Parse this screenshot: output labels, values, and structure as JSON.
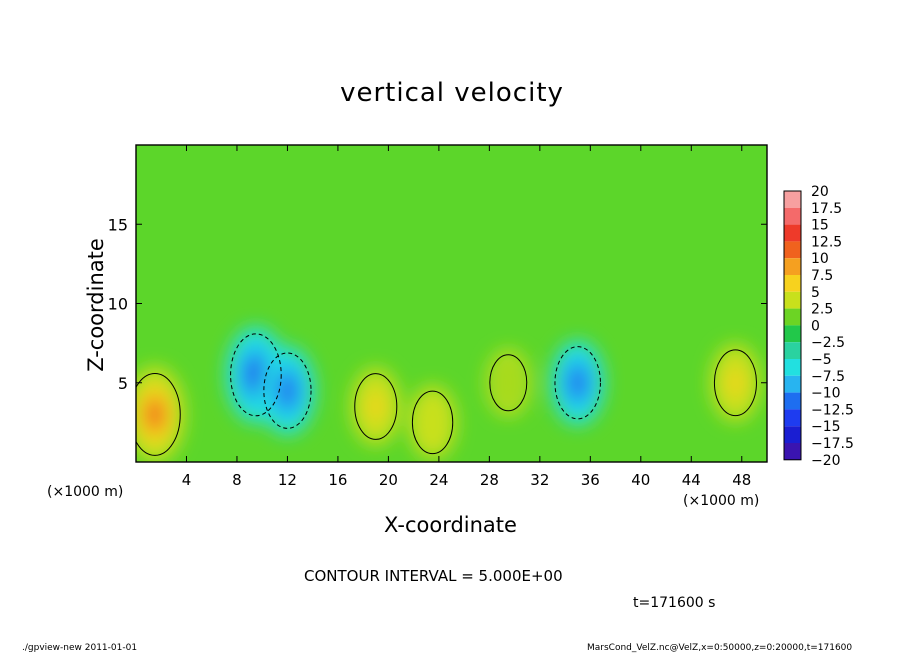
{
  "chart_data": {
    "type": "heatmap",
    "title": "vertical velocity",
    "xlabel": "X-coordinate",
    "ylabel": "Z-coordinate",
    "x_unit_label": "(×1000 m)",
    "y_unit_label": "(×1000 m)",
    "xlim": [
      0,
      50
    ],
    "ylim": [
      0,
      20
    ],
    "x_ticks": [
      4,
      8,
      12,
      16,
      20,
      24,
      28,
      32,
      36,
      40,
      44,
      48
    ],
    "y_ticks": [
      5,
      10,
      15
    ],
    "colorbar": {
      "levels": [
        "20",
        "17.5",
        "15",
        "12.5",
        "10",
        "7.5",
        "5",
        "2.5",
        "0",
        "−2.5",
        "−5",
        "−7.5",
        "−10",
        "−12.5",
        "−15",
        "−17.5",
        "−20"
      ],
      "colors": [
        "#f7a0a0",
        "#f46a6a",
        "#ee3a2a",
        "#f0621e",
        "#f5a020",
        "#f7d21e",
        "#c8e01c",
        "#6cd424",
        "#22c84a",
        "#2ad2a0",
        "#22e0e0",
        "#28b4f0",
        "#1e6ef0",
        "#1e3cf0",
        "#1a1ed2",
        "#3a14b0",
        "#6a14b4"
      ]
    },
    "field_features": [
      {
        "kind": "updraft",
        "x": 1.5,
        "z": 3.0,
        "peak": 12
      },
      {
        "kind": "updraft",
        "x": 19.0,
        "z": 3.5,
        "peak": 7
      },
      {
        "kind": "updraft",
        "x": 23.5,
        "z": 2.5,
        "peak": 6
      },
      {
        "kind": "updraft",
        "x": 29.5,
        "z": 5.0,
        "peak": 4
      },
      {
        "kind": "updraft",
        "x": 47.5,
        "z": 5.0,
        "peak": 7
      },
      {
        "kind": "downdraft",
        "x": 9.5,
        "z": 5.5,
        "peak": -12
      },
      {
        "kind": "downdraft",
        "x": 12.0,
        "z": 4.5,
        "peak": -10
      },
      {
        "kind": "downdraft",
        "x": 35.0,
        "z": 5.0,
        "peak": -9
      }
    ],
    "contour_interval_text": "CONTOUR INTERVAL = 5.000E+00",
    "time_text": "t=171600 s"
  },
  "footer": {
    "left": "./gpview-new  2011-01-01",
    "right": "MarsCond_VelZ.nc@VelZ,x=0:50000,z=0:20000,t=171600"
  }
}
